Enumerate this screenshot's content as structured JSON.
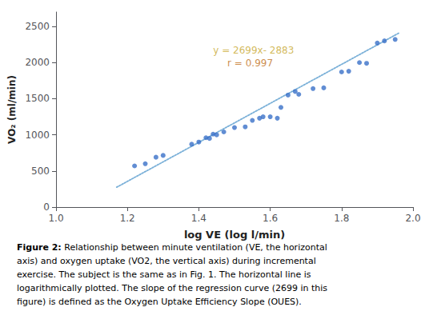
{
  "chart_data": {
    "type": "scatter",
    "xlabel": "log VE (log l/min)",
    "ylabel": "VO₂ (ml/min)",
    "xlim": [
      1.0,
      2.0
    ],
    "ylim": [
      0,
      2700
    ],
    "xticks": [
      {
        "value": 1.0,
        "label": "1.0"
      },
      1.2,
      1.4,
      1.6,
      1.8,
      {
        "value": 2.0,
        "label": "2.0"
      }
    ],
    "yticks": [
      0,
      500,
      1000,
      1500,
      2000,
      2500
    ],
    "grid": false,
    "series": [
      {
        "type": "scatter",
        "color": "#3a70c8",
        "marker": "circle",
        "x": [
          1.22,
          1.25,
          1.28,
          1.3,
          1.38,
          1.4,
          1.42,
          1.43,
          1.44,
          1.45,
          1.47,
          1.5,
          1.53,
          1.55,
          1.57,
          1.58,
          1.6,
          1.62,
          1.63,
          1.65,
          1.67,
          1.68,
          1.72,
          1.75,
          1.8,
          1.82,
          1.85,
          1.87,
          1.9,
          1.92,
          1.95
        ],
        "values": [
          570,
          600,
          690,
          715,
          870,
          900,
          960,
          950,
          1010,
          1000,
          1040,
          1100,
          1110,
          1200,
          1230,
          1250,
          1250,
          1230,
          1380,
          1550,
          1600,
          1560,
          1640,
          1650,
          1870,
          1880,
          2000,
          1990,
          2270,
          2300,
          2320
        ]
      },
      {
        "type": "line",
        "color": "#7ab0d8",
        "line_style": "dotted",
        "x": [
          1.17,
          1.96
        ],
        "values": [
          274.83,
          2407.04
        ]
      }
    ],
    "annotations": [
      {
        "text": "y = 2699x- 2883",
        "x": 1.44,
        "y": 2100,
        "color": "#c8a832"
      },
      {
        "text": "r = 0.997",
        "x": 1.48,
        "y": 1920,
        "color": "#c07020"
      }
    ],
    "caption_bold": "Figure 2:",
    "caption": [
      "Relationship between minute ventilation (VE, the horizontal",
      "axis) and oxygen uptake (VO2, the vertical axis) during incremental",
      "exercise. The subject is the same as in Fig. 1. The horizontal line is",
      "logarithmically plotted. The slope of the regression curve (2699 in this",
      "figure) is defined as the Oxygen Uptake Efficiency Slope (OUES)."
    ]
  }
}
